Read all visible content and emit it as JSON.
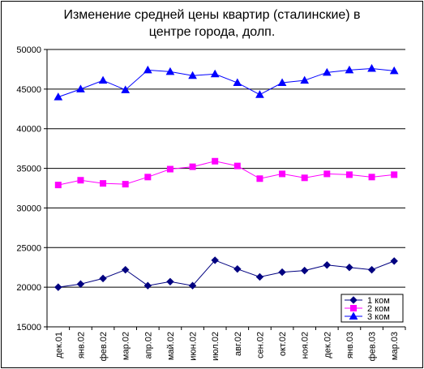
{
  "chart_data": {
    "type": "line",
    "title_lines": [
      "Изменение средней цены квартир (сталинские) в",
      "центре города, долп."
    ],
    "xlabel": "",
    "ylabel": "",
    "ylim": [
      15000,
      50000
    ],
    "yticks": [
      15000,
      20000,
      25000,
      30000,
      35000,
      40000,
      45000,
      50000
    ],
    "grid": "horizontal",
    "legend_position": "bottom-right",
    "categories": [
      "дек.01",
      "янв.02",
      "фев.02",
      "мар.02",
      "апр.02",
      "май.02",
      "июн.02",
      "июл.02",
      "авг.02",
      "сен.02",
      "окт.02",
      "ноя.02",
      "дек.02",
      "янв.03",
      "фев.03",
      "мар.03"
    ],
    "series": [
      {
        "name": "1 ком",
        "color": "#000080",
        "marker": "diamond",
        "values": [
          20000,
          20400,
          21100,
          22200,
          20200,
          20700,
          20200,
          23400,
          22300,
          21300,
          21900,
          22100,
          22800,
          22500,
          22200,
          23300
        ]
      },
      {
        "name": "2 ком",
        "color": "#ff00ff",
        "marker": "square",
        "values": [
          32900,
          33500,
          33100,
          33000,
          33900,
          34900,
          35200,
          35900,
          35300,
          33700,
          34300,
          33800,
          34300,
          34200,
          33900,
          34200
        ]
      },
      {
        "name": "3 ком",
        "color": "#0000ff",
        "marker": "triangle",
        "values": [
          44000,
          45000,
          46100,
          44900,
          47400,
          47200,
          46700,
          46900,
          45800,
          44300,
          45800,
          46100,
          47100,
          47400,
          47600,
          47300
        ]
      }
    ]
  }
}
